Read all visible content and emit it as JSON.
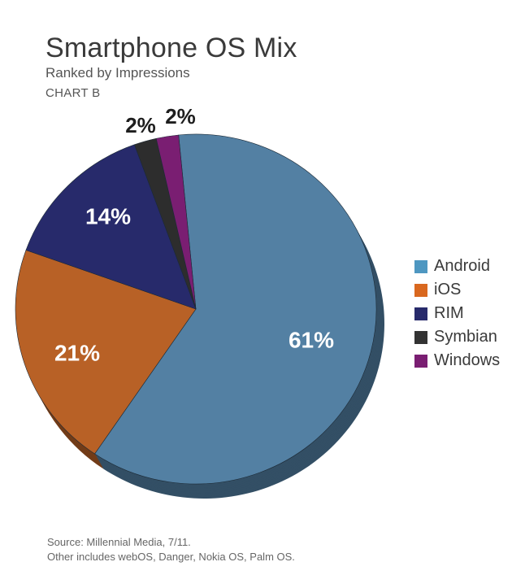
{
  "header": {
    "title": "Smartphone OS Mix",
    "subtitle": "Ranked by Impressions",
    "chart_tag": "CHART B"
  },
  "chart_data": {
    "type": "pie",
    "title": "Smartphone OS Mix",
    "subtitle": "Ranked by Impressions",
    "categories": [
      "Android",
      "iOS",
      "RIM",
      "Symbian",
      "Windows"
    ],
    "values": [
      61,
      21,
      14,
      2,
      2
    ],
    "data_labels": [
      "61%",
      "21%",
      "14%",
      "2%",
      "2%"
    ],
    "colors": [
      "#5380a3",
      "#b86126",
      "#272a6b",
      "#2d2d2d",
      "#7a1e72"
    ],
    "legend_colors": [
      "#4e97c1",
      "#d9681f",
      "#272a6b",
      "#333333",
      "#7a1e72"
    ],
    "legend_position": "right",
    "style": "3d-tilted"
  },
  "footnote": {
    "source": "Source: Millennial Media, 7/11.",
    "note": "Other includes webOS, Danger, Nokia OS, Palm OS."
  }
}
